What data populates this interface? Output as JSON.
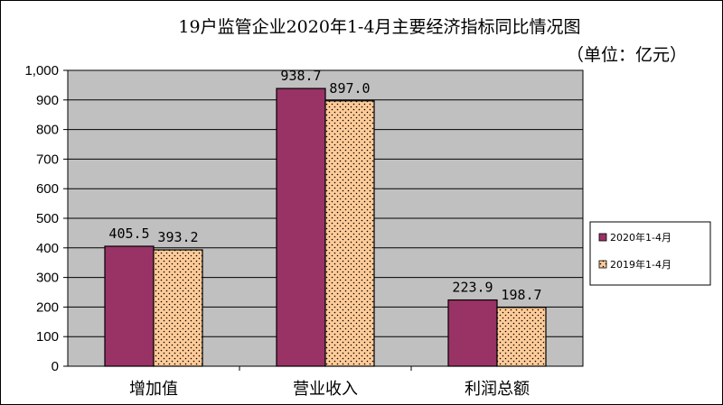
{
  "chart_data": {
    "type": "bar",
    "title": "19户监管企业2020年1-4月主要经济指标同比情况图",
    "unit_note": "（单位：亿元）",
    "categories": [
      "增加值",
      "营业收入",
      "利润总额"
    ],
    "series": [
      {
        "name": "2020年1-4月",
        "values": [
          405.5,
          938.7,
          223.9
        ],
        "value_labels": [
          "405.5",
          "938.7",
          "223.9"
        ],
        "color": "#993366"
      },
      {
        "name": "2019年1-4月",
        "values": [
          393.2,
          897.0,
          198.7
        ],
        "value_labels": [
          "393.2",
          "897.0",
          "198.7"
        ],
        "color": "#ffcc99"
      }
    ],
    "ylim": [
      0,
      1000
    ],
    "yticks": [
      0,
      100,
      200,
      300,
      400,
      500,
      600,
      700,
      800,
      900,
      1000
    ],
    "ytick_labels": [
      "0",
      "100",
      "200",
      "300",
      "400",
      "500",
      "600",
      "700",
      "800",
      "900",
      "1,000"
    ],
    "plot_background": "#c0c0c0",
    "grid": true,
    "legend_position": "right"
  }
}
